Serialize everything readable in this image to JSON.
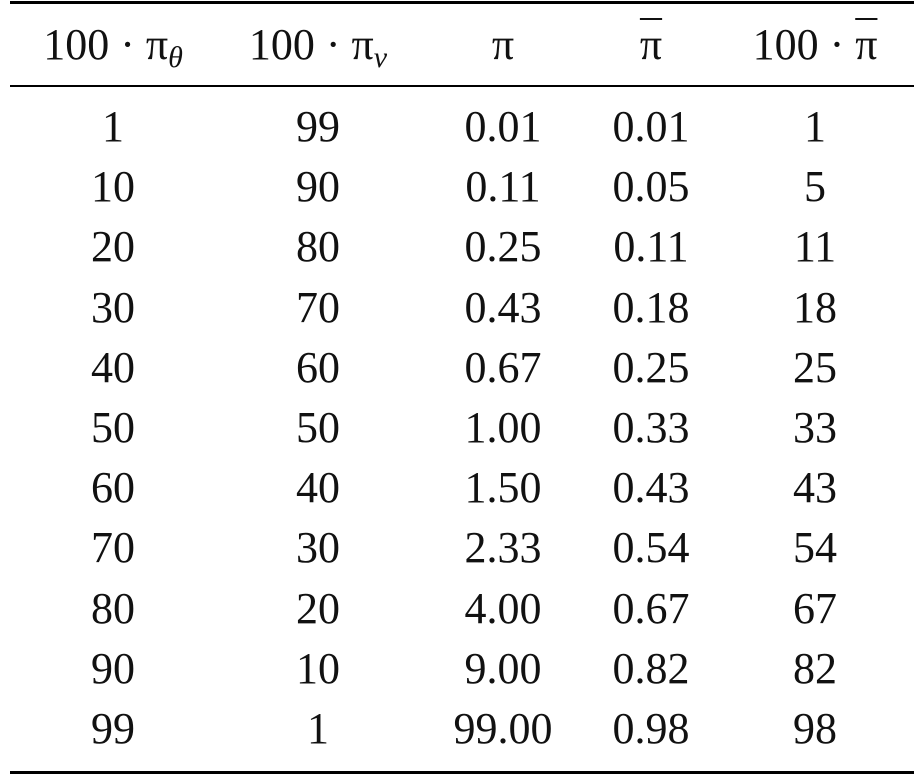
{
  "table": {
    "header": [
      {
        "base": "100 · π",
        "sub": "θ"
      },
      {
        "base": "100 · π",
        "sub": "v"
      },
      {
        "base": "π"
      },
      {
        "over": "π"
      },
      {
        "base": "100 · ",
        "over": "π"
      }
    ],
    "rows": [
      [
        "1",
        "99",
        "0.01",
        "0.01",
        "1"
      ],
      [
        "10",
        "90",
        "0.11",
        "0.05",
        "5"
      ],
      [
        "20",
        "80",
        "0.25",
        "0.11",
        "11"
      ],
      [
        "30",
        "70",
        "0.43",
        "0.18",
        "18"
      ],
      [
        "40",
        "60",
        "0.67",
        "0.25",
        "25"
      ],
      [
        "50",
        "50",
        "1.00",
        "0.33",
        "33"
      ],
      [
        "60",
        "40",
        "1.50",
        "0.43",
        "43"
      ],
      [
        "70",
        "30",
        "2.33",
        "0.54",
        "54"
      ],
      [
        "80",
        "20",
        "4.00",
        "0.67",
        "67"
      ],
      [
        "90",
        "10",
        "9.00",
        "0.82",
        "82"
      ],
      [
        "99",
        "1",
        "99.00",
        "0.98",
        "98"
      ]
    ]
  }
}
